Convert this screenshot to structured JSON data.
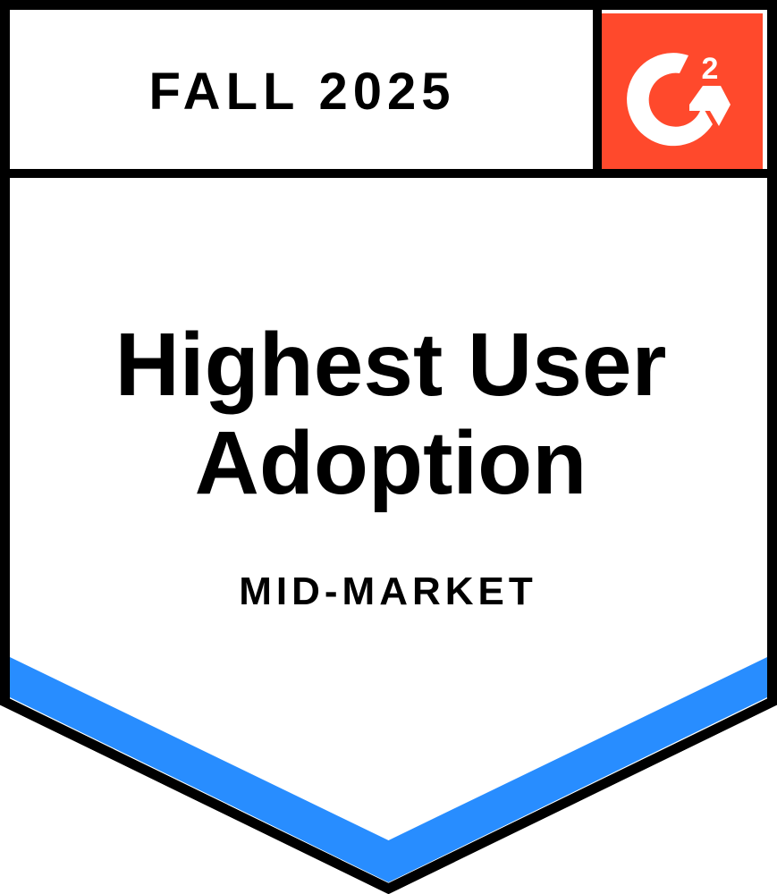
{
  "badge": {
    "season": "FALL 2025",
    "title_line1": "Highest User",
    "title_line2": "Adoption",
    "segment": "MID-MARKET",
    "logo_text": "G2",
    "colors": {
      "logo_bg": "#FF492C",
      "accent_band": "#288DFF",
      "outline": "#000000"
    }
  }
}
